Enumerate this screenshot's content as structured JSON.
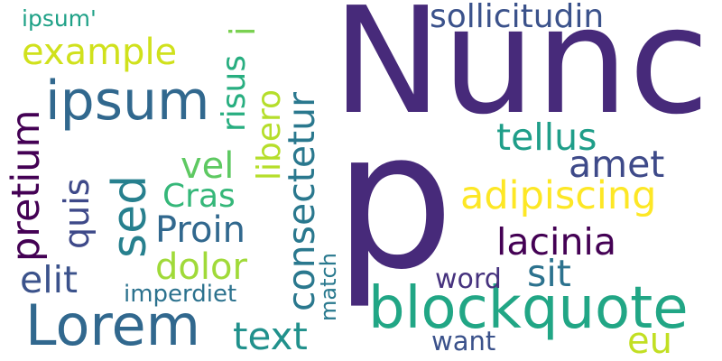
{
  "words": [
    {
      "id": "nunc",
      "text": "Nunc",
      "color": "#472a7a",
      "rotate": false
    },
    {
      "id": "p",
      "text": "p",
      "color": "#472a7a",
      "rotate": false
    },
    {
      "id": "blockquote",
      "text": "blockquote",
      "color": "#21a685",
      "rotate": false
    },
    {
      "id": "lorem",
      "text": "Lorem",
      "color": "#31688e",
      "rotate": false
    },
    {
      "id": "ipsum",
      "text": "ipsum",
      "color": "#31688e",
      "rotate": false
    },
    {
      "id": "sed",
      "text": "sed",
      "color": "#27808e",
      "rotate": true
    },
    {
      "id": "adipiscing",
      "text": "adipiscing",
      "color": "#fde725",
      "rotate": false
    },
    {
      "id": "consectetur",
      "text": "consectetur",
      "color": "#2a788e",
      "rotate": true
    },
    {
      "id": "pretium",
      "text": "pretium",
      "color": "#440154",
      "rotate": true
    },
    {
      "id": "example",
      "text": "example",
      "color": "#d0e11c",
      "rotate": false
    },
    {
      "id": "sollicitudin",
      "text": "sollicitudin",
      "color": "#3b528b",
      "rotate": false
    },
    {
      "id": "tellus",
      "text": "tellus",
      "color": "#1f9e89",
      "rotate": false
    },
    {
      "id": "amet",
      "text": "amet",
      "color": "#3e4a89",
      "rotate": false
    },
    {
      "id": "lacinia",
      "text": "lacinia",
      "color": "#440154",
      "rotate": false
    },
    {
      "id": "libero",
      "text": "libero",
      "color": "#b5de2b",
      "rotate": true
    },
    {
      "id": "risus",
      "text": "risus",
      "color": "#28ae80",
      "rotate": true
    },
    {
      "id": "vel",
      "text": "vel",
      "color": "#5ec962",
      "rotate": false
    },
    {
      "id": "cras",
      "text": "Cras",
      "color": "#35b779",
      "rotate": false
    },
    {
      "id": "quis",
      "text": "quis",
      "color": "#3e4989",
      "rotate": true
    },
    {
      "id": "proin",
      "text": "Proin",
      "color": "#31688e",
      "rotate": false
    },
    {
      "id": "dolor",
      "text": "dolor",
      "color": "#a0da39",
      "rotate": false
    },
    {
      "id": "elit",
      "text": "elit",
      "color": "#3b528b",
      "rotate": false
    },
    {
      "id": "sit",
      "text": "sit",
      "color": "#2c728e",
      "rotate": false
    },
    {
      "id": "text",
      "text": "text",
      "color": "#21918c",
      "rotate": false
    },
    {
      "id": "eu",
      "text": "eu",
      "color": "#c2df23",
      "rotate": false
    },
    {
      "id": "word",
      "text": "word",
      "color": "#46327e",
      "rotate": false
    },
    {
      "id": "want",
      "text": "want",
      "color": "#3b528b",
      "rotate": false
    },
    {
      "id": "imperdiet",
      "text": "imperdiet",
      "color": "#2c728e",
      "rotate": false
    },
    {
      "id": "match",
      "text": "match",
      "color": "#29798e",
      "rotate": true
    },
    {
      "id": "ipsum-quote",
      "text": "ipsum'",
      "color": "#1fa187",
      "rotate": false
    },
    {
      "id": "i",
      "text": "i",
      "color": "#7ad151",
      "rotate": true
    }
  ]
}
